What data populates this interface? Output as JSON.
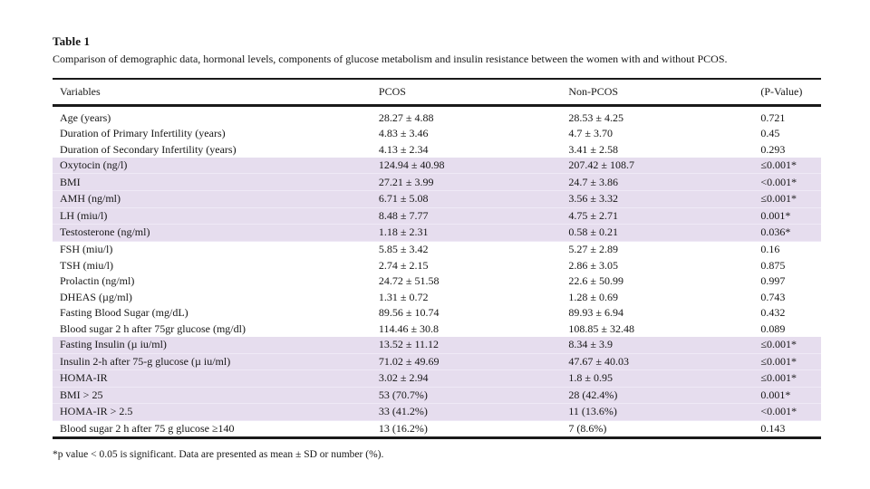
{
  "table": {
    "label": "Table 1",
    "caption": "Comparison of demographic data, hormonal levels, components of glucose metabolism and insulin resistance between the women with and without PCOS.",
    "columns": [
      "Variables",
      "PCOS",
      "Non-PCOS",
      "(P-Value)"
    ],
    "highlight_color": "#e6ddee",
    "rows": [
      {
        "variable": "Age (years)",
        "pcos": "28.27 ± 4.88",
        "non_pcos": "28.53 ± 4.25",
        "p_value": "0.721",
        "highlight": false
      },
      {
        "variable": "Duration of Primary Infertility (years)",
        "pcos": "4.83 ± 3.46",
        "non_pcos": "4.7 ± 3.70",
        "p_value": "0.45",
        "highlight": false
      },
      {
        "variable": "Duration of Secondary Infertility (years)",
        "pcos": "4.13 ± 2.34",
        "non_pcos": "3.41 ± 2.58",
        "p_value": "0.293",
        "highlight": false
      },
      {
        "variable": "Oxytocin (ng/l)",
        "pcos": "124.94 ± 40.98",
        "non_pcos": "207.42 ± 108.7",
        "p_value": "≤0.001*",
        "highlight": true
      },
      {
        "variable": "BMI",
        "pcos": "27.21 ± 3.99",
        "non_pcos": "24.7 ± 3.86",
        "p_value": "<0.001*",
        "highlight": true
      },
      {
        "variable": "AMH (ng/ml)",
        "pcos": "6.71 ± 5.08",
        "non_pcos": "3.56 ± 3.32",
        "p_value": "≤0.001*",
        "highlight": true
      },
      {
        "variable": "LH (miu/l)",
        "pcos": "8.48 ± 7.77",
        "non_pcos": "4.75 ± 2.71",
        "p_value": "0.001*",
        "highlight": true
      },
      {
        "variable": "Testosterone (ng/ml)",
        "pcos": "1.18 ± 2.31",
        "non_pcos": "0.58 ± 0.21",
        "p_value": "0.036*",
        "highlight": true
      },
      {
        "variable": "FSH (miu/l)",
        "pcos": "5.85 ± 3.42",
        "non_pcos": "5.27 ± 2.89",
        "p_value": "0.16",
        "highlight": false
      },
      {
        "variable": "TSH (miu/l)",
        "pcos": "2.74 ± 2.15",
        "non_pcos": "2.86 ± 3.05",
        "p_value": "0.875",
        "highlight": false
      },
      {
        "variable": "Prolactin (ng/ml)",
        "pcos": "24.72 ± 51.58",
        "non_pcos": "22.6 ± 50.99",
        "p_value": "0.997",
        "highlight": false
      },
      {
        "variable": "DHEAS (µg/ml)",
        "pcos": "1.31 ± 0.72",
        "non_pcos": "1.28 ± 0.69",
        "p_value": "0.743",
        "highlight": false
      },
      {
        "variable": "Fasting Blood Sugar (mg/dL)",
        "pcos": "89.56 ± 10.74",
        "non_pcos": "89.93 ± 6.94",
        "p_value": "0.432",
        "highlight": false
      },
      {
        "variable": "Blood sugar 2 h after 75gr glucose (mg/dl)",
        "pcos": "114.46 ± 30.8",
        "non_pcos": "108.85 ± 32.48",
        "p_value": "0.089",
        "highlight": false
      },
      {
        "variable": "Fasting Insulin (µ iu/ml)",
        "pcos": "13.52 ± 11.12",
        "non_pcos": "8.34 ± 3.9",
        "p_value": "≤0.001*",
        "highlight": true
      },
      {
        "variable": "Insulin 2-h after 75-g glucose (µ iu/ml)",
        "pcos": "71.02 ± 49.69",
        "non_pcos": "47.67 ± 40.03",
        "p_value": "≤0.001*",
        "highlight": true
      },
      {
        "variable": "HOMA-IR",
        "pcos": "3.02 ± 2.94",
        "non_pcos": "1.8 ± 0.95",
        "p_value": "≤0.001*",
        "highlight": true
      },
      {
        "variable": "BMI > 25",
        "pcos": "53 (70.7%)",
        "non_pcos": "28 (42.4%)",
        "p_value": "0.001*",
        "highlight": true
      },
      {
        "variable": "HOMA-IR > 2.5",
        "pcos": "33 (41.2%)",
        "non_pcos": "11 (13.6%)",
        "p_value": "<0.001*",
        "highlight": true
      },
      {
        "variable": "Blood sugar 2 h after 75 g glucose ≥140",
        "pcos": "13 (16.2%)",
        "non_pcos": "7 (8.6%)",
        "p_value": "0.143",
        "highlight": false
      }
    ],
    "footnote": "*p value < 0.05 is significant. Data are presented as mean ± SD or number (%)."
  }
}
